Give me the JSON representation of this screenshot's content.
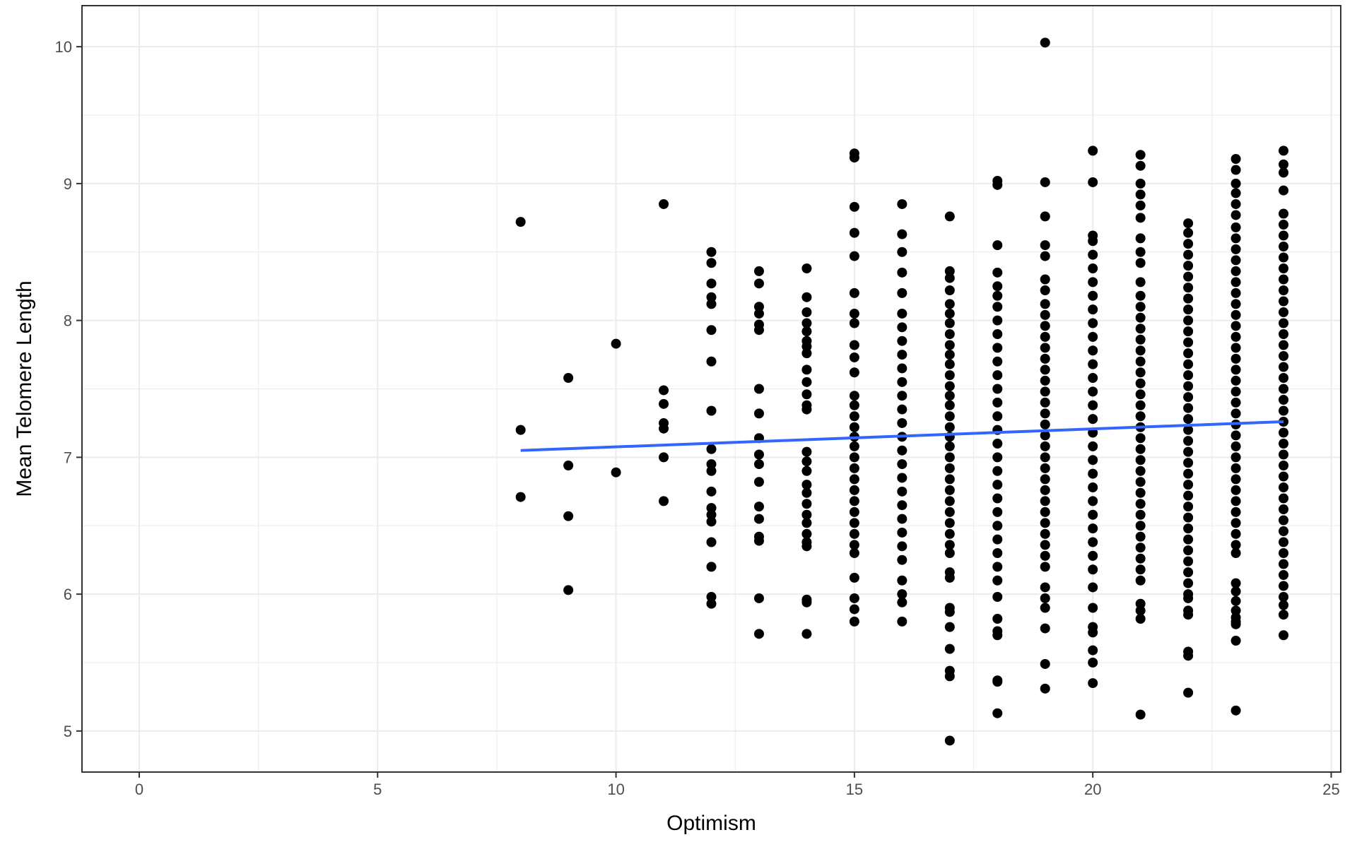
{
  "chart_data": {
    "type": "scatter",
    "title": "",
    "xlabel": "Optimism",
    "ylabel": "Mean Telomere Length",
    "xlim": [
      -1.2,
      25.2
    ],
    "ylim": [
      4.7,
      10.3
    ],
    "x_ticks": [
      0,
      5,
      10,
      15,
      20,
      25
    ],
    "y_ticks": [
      5,
      6,
      7,
      8,
      9,
      10
    ],
    "grid": true,
    "colors": {
      "points": "#000000",
      "trend": "#3366ff",
      "grid": "#ebebeb",
      "border": "#333333"
    },
    "trend_line": {
      "x": [
        8,
        24
      ],
      "y": [
        7.05,
        7.26
      ]
    },
    "columns": [
      {
        "x": 8,
        "ys": [
          8.72,
          7.2,
          6.71
        ]
      },
      {
        "x": 9,
        "ys": [
          7.58,
          6.94,
          6.57,
          6.03
        ]
      },
      {
        "x": 10,
        "ys": [
          7.83,
          6.89
        ]
      },
      {
        "x": 11,
        "ys": [
          8.85,
          7.49,
          7.39,
          7.25,
          7.21,
          7.0,
          6.68
        ]
      },
      {
        "x": 12,
        "ys": [
          8.5,
          8.42,
          8.27,
          8.17,
          8.12,
          7.93,
          7.7,
          7.34,
          7.06,
          6.95,
          6.9,
          6.75,
          6.63,
          6.58,
          6.53,
          6.38,
          6.2,
          5.98,
          5.93
        ]
      },
      {
        "x": 13,
        "ys": [
          8.36,
          8.27,
          8.1,
          8.05,
          7.97,
          7.93,
          7.5,
          7.32,
          7.14,
          7.02,
          6.95,
          6.82,
          6.64,
          6.55,
          6.42,
          6.39,
          5.97,
          5.71
        ]
      },
      {
        "x": 14,
        "ys": [
          8.38,
          8.17,
          8.06,
          7.98,
          7.92,
          7.85,
          7.81,
          7.76,
          7.64,
          7.55,
          7.46,
          7.38,
          7.35,
          7.04,
          6.97,
          6.9,
          6.8,
          6.74,
          6.66,
          6.58,
          6.52,
          6.44,
          6.38,
          6.35,
          5.96,
          5.94,
          5.71
        ]
      },
      {
        "x": 15,
        "ys": [
          9.22,
          9.19,
          8.83,
          8.64,
          8.47,
          8.2,
          8.05,
          7.98,
          7.82,
          7.73,
          7.62,
          7.45,
          7.38,
          7.3,
          7.22,
          7.15,
          7.08,
          7.0,
          6.92,
          6.84,
          6.76,
          6.68,
          6.6,
          6.52,
          6.44,
          6.36,
          6.3,
          6.12,
          5.97,
          5.89,
          5.8
        ]
      },
      {
        "x": 16,
        "ys": [
          8.85,
          8.63,
          8.5,
          8.35,
          8.2,
          8.05,
          7.95,
          7.85,
          7.75,
          7.65,
          7.55,
          7.45,
          7.35,
          7.25,
          7.15,
          7.05,
          6.95,
          6.85,
          6.75,
          6.65,
          6.55,
          6.45,
          6.35,
          6.25,
          6.1,
          6.0,
          5.94,
          5.8
        ]
      },
      {
        "x": 17,
        "ys": [
          8.76,
          8.36,
          8.31,
          8.22,
          8.12,
          8.05,
          7.98,
          7.9,
          7.82,
          7.75,
          7.68,
          7.6,
          7.52,
          7.45,
          7.38,
          7.3,
          7.22,
          7.15,
          7.08,
          7.0,
          6.92,
          6.84,
          6.76,
          6.68,
          6.6,
          6.52,
          6.44,
          6.36,
          6.3,
          6.16,
          6.12,
          5.9,
          5.87,
          5.76,
          5.6,
          5.44,
          5.4,
          4.93
        ]
      },
      {
        "x": 18,
        "ys": [
          9.02,
          8.99,
          8.55,
          8.35,
          8.25,
          8.18,
          8.1,
          8.0,
          7.9,
          7.8,
          7.7,
          7.6,
          7.5,
          7.4,
          7.3,
          7.2,
          7.1,
          7.0,
          6.9,
          6.8,
          6.7,
          6.6,
          6.5,
          6.4,
          6.3,
          6.2,
          6.1,
          5.98,
          5.82,
          5.73,
          5.7,
          5.37,
          5.36,
          5.13
        ]
      },
      {
        "x": 19,
        "ys": [
          10.03,
          9.01,
          8.76,
          8.55,
          8.47,
          8.3,
          8.22,
          8.12,
          8.04,
          7.96,
          7.88,
          7.8,
          7.72,
          7.64,
          7.56,
          7.48,
          7.4,
          7.32,
          7.24,
          7.16,
          7.08,
          7.0,
          6.92,
          6.84,
          6.76,
          6.68,
          6.6,
          6.52,
          6.44,
          6.36,
          6.28,
          6.2,
          6.05,
          5.97,
          5.9,
          5.75,
          5.49,
          5.31
        ]
      },
      {
        "x": 20,
        "ys": [
          9.24,
          9.01,
          8.62,
          8.58,
          8.48,
          8.38,
          8.28,
          8.18,
          8.08,
          7.98,
          7.88,
          7.78,
          7.68,
          7.58,
          7.48,
          7.38,
          7.28,
          7.18,
          7.08,
          6.98,
          6.88,
          6.78,
          6.68,
          6.58,
          6.48,
          6.38,
          6.28,
          6.18,
          6.05,
          5.9,
          5.76,
          5.72,
          5.59,
          5.5,
          5.35
        ]
      },
      {
        "x": 21,
        "ys": [
          9.21,
          9.13,
          9.0,
          8.92,
          8.84,
          8.75,
          8.6,
          8.5,
          8.42,
          8.28,
          8.18,
          8.1,
          8.02,
          7.94,
          7.86,
          7.78,
          7.7,
          7.62,
          7.54,
          7.46,
          7.38,
          7.3,
          7.22,
          7.14,
          7.06,
          6.98,
          6.9,
          6.82,
          6.74,
          6.66,
          6.58,
          6.5,
          6.42,
          6.34,
          6.26,
          6.18,
          6.1,
          5.93,
          5.88,
          5.82,
          5.12
        ]
      },
      {
        "x": 22,
        "ys": [
          8.71,
          8.64,
          8.56,
          8.48,
          8.4,
          8.32,
          8.24,
          8.16,
          8.08,
          8.0,
          7.92,
          7.84,
          7.76,
          7.68,
          7.6,
          7.52,
          7.44,
          7.36,
          7.28,
          7.2,
          7.12,
          7.04,
          6.96,
          6.88,
          6.8,
          6.72,
          6.64,
          6.56,
          6.48,
          6.4,
          6.32,
          6.24,
          6.16,
          6.08,
          6.0,
          5.97,
          5.88,
          5.85,
          5.58,
          5.55,
          5.28
        ]
      },
      {
        "x": 23,
        "ys": [
          9.18,
          9.1,
          9.0,
          8.93,
          8.85,
          8.77,
          8.68,
          8.6,
          8.52,
          8.44,
          8.36,
          8.28,
          8.2,
          8.12,
          8.04,
          7.96,
          7.88,
          7.8,
          7.72,
          7.64,
          7.56,
          7.48,
          7.4,
          7.32,
          7.24,
          7.16,
          7.08,
          7.0,
          6.92,
          6.84,
          6.76,
          6.68,
          6.6,
          6.52,
          6.44,
          6.36,
          6.3,
          6.08,
          6.02,
          5.95,
          5.88,
          5.83,
          5.8,
          5.78,
          5.66,
          5.15
        ]
      },
      {
        "x": 24,
        "ys": [
          9.24,
          9.14,
          9.08,
          8.95,
          8.78,
          8.7,
          8.62,
          8.54,
          8.46,
          8.38,
          8.3,
          8.22,
          8.14,
          8.06,
          7.98,
          7.9,
          7.82,
          7.74,
          7.66,
          7.58,
          7.5,
          7.42,
          7.34,
          7.26,
          7.18,
          7.1,
          7.02,
          6.94,
          6.86,
          6.78,
          6.7,
          6.62,
          6.54,
          6.46,
          6.38,
          6.3,
          6.22,
          6.14,
          6.06,
          5.98,
          5.92,
          5.85,
          5.7
        ]
      }
    ]
  }
}
